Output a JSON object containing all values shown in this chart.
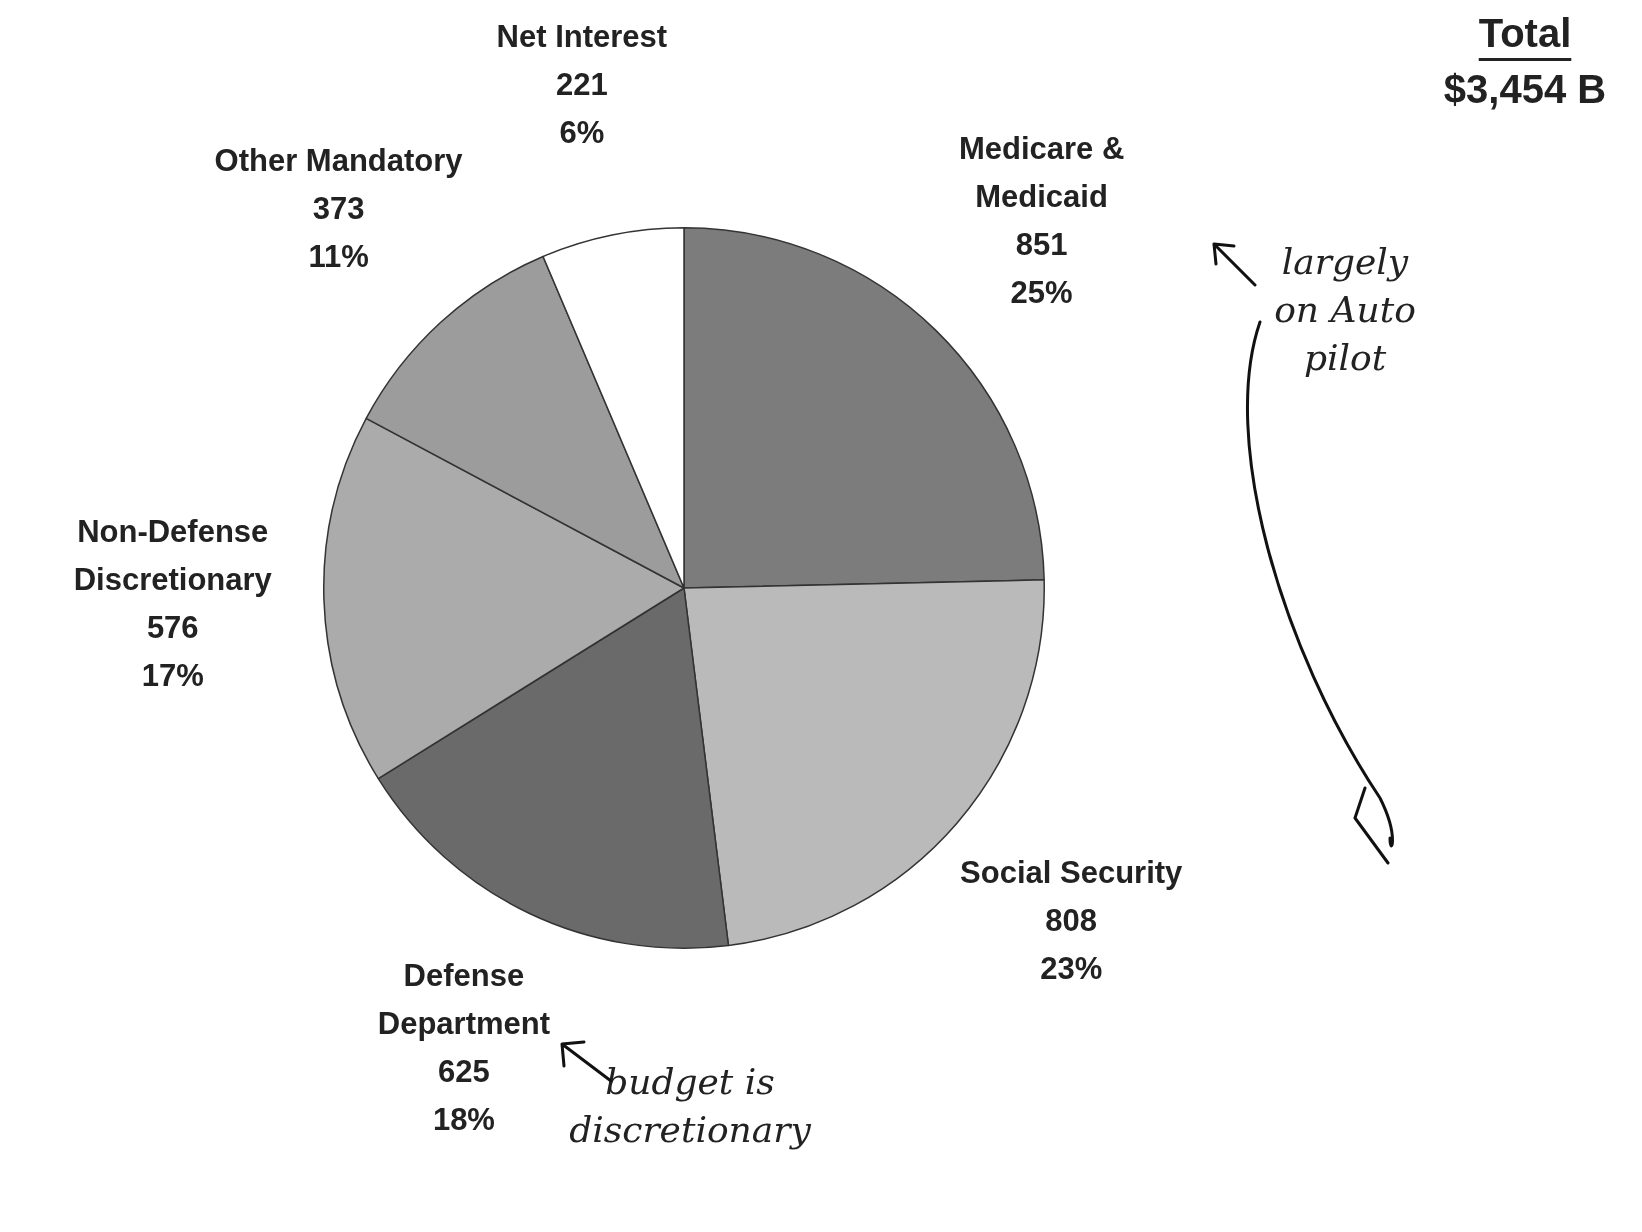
{
  "chart_data": {
    "type": "pie",
    "categories": [
      "Medicare & Medicaid",
      "Social Security",
      "Defense Department",
      "Non-Defense Discretionary",
      "Other Mandatory",
      "Net Interest"
    ],
    "values": [
      851,
      808,
      625,
      576,
      373,
      221
    ],
    "value_labels": [
      "851\n25%",
      "808\n23%",
      "625\n18%",
      "576\n17%",
      "373\n11%",
      "221\n6%"
    ],
    "colors": [
      "#7c7c7c",
      "#bababa",
      "#6a6a6a",
      "#ababab",
      "#9c9c9c",
      "#ffffff"
    ],
    "annotations": [
      "Total",
      "$3,454 B",
      "largely on Auto pilot",
      "budget is discretionary"
    ],
    "legend": false
  }
}
